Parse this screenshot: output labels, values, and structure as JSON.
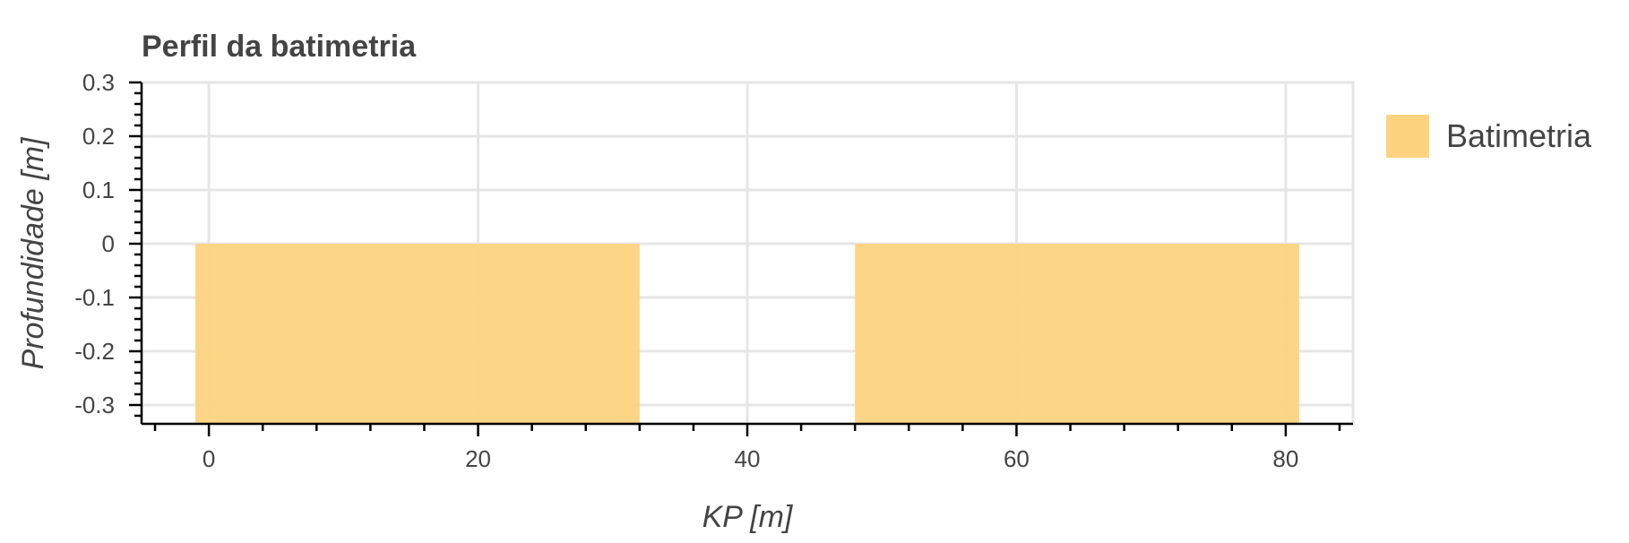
{
  "chart_data": {
    "type": "area",
    "title": "Perfil da batimetria",
    "xlabel": "KP [m]",
    "ylabel": "Profundidade [m]",
    "xlim": [
      -5,
      85
    ],
    "ylim": [
      -0.335,
      0.3
    ],
    "xticks": [
      0,
      20,
      40,
      60,
      80
    ],
    "xtick_labels": [
      "0",
      "20",
      "40",
      "60",
      "80"
    ],
    "yticks": [
      0.3,
      0.2,
      0.1,
      0,
      -0.1,
      -0.2,
      -0.3
    ],
    "ytick_labels": [
      "0.3",
      "0.2",
      "0.1",
      "0",
      "-0.1",
      "-0.2",
      "-0.3"
    ],
    "grid": true,
    "legend": "right",
    "series": [
      {
        "name": "Batimetria",
        "color": "#fdd380",
        "segments": [
          {
            "x0": -1,
            "x1": 32,
            "y_top": 0,
            "y_bottom": -0.335
          },
          {
            "x0": 48,
            "x1": 81,
            "y_top": 0,
            "y_bottom": -0.335
          }
        ]
      }
    ]
  }
}
